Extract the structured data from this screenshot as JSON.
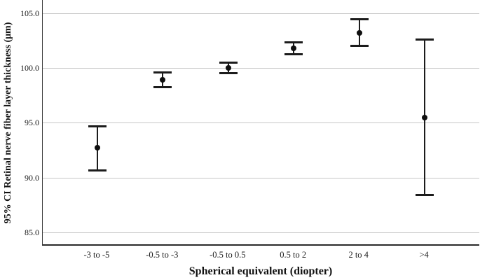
{
  "chart_data": {
    "type": "scatter",
    "subtype": "error-bar-plot",
    "title": "",
    "xlabel": "Spherical equivalent (diopter)",
    "ylabel": "95% CI Retinal nerve fiber layer thickness (μm)",
    "categories": [
      "-3 to -5",
      "-0.5 to -3",
      "-0.5 to 0.5",
      "0.5 to 2",
      "2 to 4",
      ">4"
    ],
    "points": [
      {
        "category": "-3 to -5",
        "mean": 92.7,
        "ci_low": 90.6,
        "ci_high": 94.7
      },
      {
        "category": "-0.5 to -3",
        "mean": 98.9,
        "ci_low": 98.2,
        "ci_high": 99.6
      },
      {
        "category": "-0.5 to 0.5",
        "mean": 100.0,
        "ci_low": 99.5,
        "ci_high": 100.5
      },
      {
        "category": "0.5 to 2",
        "mean": 101.8,
        "ci_low": 101.2,
        "ci_high": 102.4
      },
      {
        "category": "2 to 4",
        "mean": 103.2,
        "ci_low": 102.0,
        "ci_high": 104.5
      },
      {
        "category": ">4",
        "mean": 95.5,
        "ci_low": 88.4,
        "ci_high": 102.6
      }
    ],
    "yticks": [
      {
        "value": 85,
        "label": "85.0"
      },
      {
        "value": 90,
        "label": "90.0"
      },
      {
        "value": 95,
        "label": "95.0"
      },
      {
        "value": 100,
        "label": "100.0"
      },
      {
        "value": 105,
        "label": "105.0"
      }
    ],
    "ylim": [
      83.9,
      106.2
    ],
    "grid": true,
    "legend": false,
    "colors": {
      "marker": "#0f0f0f",
      "errorbar": "#1c1c1c",
      "gridline": "#c6c6c6",
      "axis": "#3a3a3a",
      "text": "#1a1a1a"
    }
  }
}
